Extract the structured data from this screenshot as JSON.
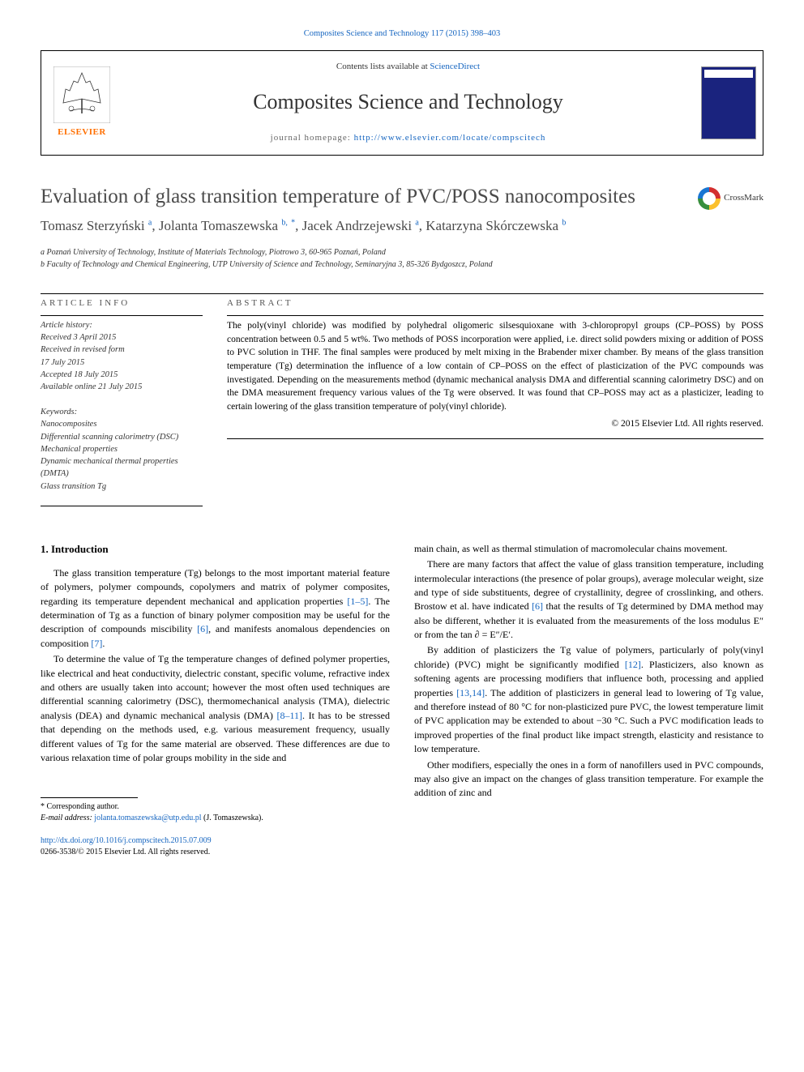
{
  "header": {
    "top_link_text": "Composites Science and Technology 117 (2015) 398–403",
    "top_link_href": "#",
    "contents_prefix": "Contents lists available at ",
    "contents_link": "ScienceDirect",
    "journal_title": "Composites Science and Technology",
    "homepage_label": "journal homepage: ",
    "homepage_url": "http://www.elsevier.com/locate/compscitech",
    "publisher": "ELSEVIER"
  },
  "crossmark": "CrossMark",
  "article": {
    "title": "Evaluation of glass transition temperature of PVC/POSS nanocomposites",
    "authors_html": "Tomasz Sterzyński <sup class='link-sup'>a</sup>, Jolanta Tomaszewska <sup class='link-sup'>b,</sup> <sup class='link-sup'>*</sup>, Jacek Andrzejewski <sup class='link-sup'>a</sup>, Katarzyna Skórczewska <sup class='link-sup'>b</sup>",
    "affiliations": [
      "a Poznań University of Technology, Institute of Materials Technology, Piotrowo 3, 60-965 Poznań, Poland",
      "b Faculty of Technology and Chemical Engineering, UTP University of Science and Technology, Seminaryjna 3, 85-326 Bydgoszcz, Poland"
    ]
  },
  "info": {
    "label": "ARTICLE INFO",
    "history_hdr": "Article history:",
    "history": [
      "Received 3 April 2015",
      "Received in revised form",
      "17 July 2015",
      "Accepted 18 July 2015",
      "Available online 21 July 2015"
    ],
    "keywords_hdr": "Keywords:",
    "keywords": [
      "Nanocomposites",
      "Differential scanning calorimetry (DSC)",
      "Mechanical properties",
      "Dynamic mechanical thermal properties (DMTA)",
      "Glass transition Tg"
    ]
  },
  "abstract": {
    "label": "ABSTRACT",
    "text": "The poly(vinyl chloride) was modified by polyhedral oligomeric silsesquioxane with 3-chloropropyl groups (CP–POSS) by POSS concentration between 0.5 and 5 wt%. Two methods of POSS incorporation were applied, i.e. direct solid powders mixing or addition of POSS to PVC solution in THF. The final samples were produced by melt mixing in the Brabender mixer chamber. By means of the glass transition temperature (Tg) determination the influence of a low contain of CP–POSS on the effect of plasticization of the PVC compounds was investigated. Depending on the measurements method (dynamic mechanical analysis DMA and differential scanning calorimetry DSC) and on the DMA measurement frequency various values of the Tg were observed. It was found that CP–POSS may act as a plasticizer, leading to certain lowering of the glass transition temperature of poly(vinyl chloride).",
    "copyright": "© 2015 Elsevier Ltd. All rights reserved."
  },
  "body": {
    "heading": "1. Introduction",
    "left": [
      "The glass transition temperature (Tg) belongs to the most important material feature of polymers, polymer compounds, copolymers and matrix of polymer composites, regarding its temperature dependent mechanical and application properties <a href='#'>[1–5]</a>. The determination of Tg as a function of binary polymer composition may be useful for the description of compounds miscibility <a href='#'>[6]</a>, and manifests anomalous dependencies on composition <a href='#'>[7]</a>.",
      "To determine the value of Tg the temperature changes of defined polymer properties, like electrical and heat conductivity, dielectric constant, specific volume, refractive index and others are usually taken into account; however the most often used techniques are differential scanning calorimetry (DSC), thermomechanical analysis (TMA), dielectric analysis (DEA) and dynamic mechanical analysis (DMA) <a href='#'>[8–11]</a>. It has to be stressed that depending on the methods used, e.g. various measurement frequency, usually different values of Tg for the same material are observed. These differences are due to various relaxation time of polar groups mobility in the side and"
    ],
    "right": [
      "main chain, as well as thermal stimulation of macromolecular chains movement.",
      "There are many factors that affect the value of glass transition temperature, including intermolecular interactions (the presence of polar groups), average molecular weight, size and type of side substituents, degree of crystallinity, degree of crosslinking, and others. Brostow et al. have indicated <a href='#'>[6]</a> that the results of Tg determined by DMA method may also be different, whether it is evaluated from the measurements of the loss modulus E″ or from the tan ∂ = E″/E′.",
      "By addition of plasticizers the Tg value of polymers, particularly of poly(vinyl chloride) (PVC) might be significantly modified <a href='#'>[12]</a>. Plasticizers, also known as softening agents are processing modifiers that influence both, processing and applied properties <a href='#'>[13,14]</a>. The addition of plasticizers in general lead to lowering of Tg value, and therefore instead of 80 °C for non-plasticized pure PVC, the lowest temperature limit of PVC application may be extended to about −30 °C. Such a PVC modification leads to improved properties of the final product like impact strength, elasticity and resistance to low temperature.",
      "Other modifiers, especially the ones in a form of nanofillers used in PVC compounds, may also give an impact on the changes of glass transition temperature. For example the addition of zinc and"
    ]
  },
  "footnote": {
    "corresponding": "* Corresponding author.",
    "email_label": "E-mail address: ",
    "email": "jolanta.tomaszewska@utp.edu.pl",
    "email_suffix": " (J. Tomaszewska)."
  },
  "footer": {
    "doi": "http://dx.doi.org/10.1016/j.compscitech.2015.07.009",
    "issn": "0266-3538/© 2015 Elsevier Ltd. All rights reserved."
  }
}
